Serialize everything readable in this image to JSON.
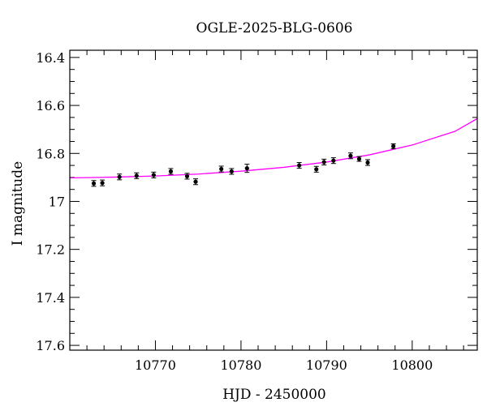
{
  "chart_data": {
    "type": "scatter",
    "title": "OGLE-2025-BLG-0606",
    "xlabel": "HJD - 2450000",
    "ylabel": "I magnitude",
    "xlim": [
      10760,
      10807.6
    ],
    "ylim": [
      17.62,
      16.37
    ],
    "y_inverted": true,
    "x_major_ticks": [
      10770,
      10780,
      10790,
      10800
    ],
    "x_tick_labels": [
      "10770",
      "10780",
      "10790",
      "10800"
    ],
    "y_major_ticks": [
      16.4,
      16.6,
      16.8,
      17.0,
      17.2,
      17.4,
      17.6
    ],
    "y_tick_labels": [
      "16.4",
      "16.6",
      "16.8",
      "17",
      "17.2",
      "17.4",
      "17.6"
    ],
    "grid": false,
    "colors": {
      "model": "#ff00ff",
      "points": "#000000"
    },
    "series": [
      {
        "type": "scatter",
        "x": [
          10762.8,
          10763.8,
          10765.8,
          10767.8,
          10769.8,
          10771.8,
          10773.7,
          10774.7,
          10777.7,
          10778.9,
          10780.7,
          10786.8,
          10788.8,
          10789.7,
          10790.8,
          10792.8,
          10793.8,
          10794.8,
          10797.8
        ],
        "y": [
          16.925,
          16.923,
          16.898,
          16.893,
          16.89,
          16.875,
          16.895,
          16.918,
          16.865,
          16.875,
          16.862,
          16.85,
          16.866,
          16.836,
          16.83,
          16.81,
          16.823,
          16.838,
          16.77
        ],
        "yerr": [
          0.012,
          0.012,
          0.012,
          0.012,
          0.012,
          0.012,
          0.012,
          0.012,
          0.012,
          0.012,
          0.017,
          0.012,
          0.012,
          0.012,
          0.012,
          0.012,
          0.01,
          0.012,
          0.01
        ]
      },
      {
        "type": "line",
        "x": [
          10760,
          10765,
          10770,
          10775,
          10780,
          10785,
          10790,
          10795,
          10800,
          10805,
          10807.6
        ],
        "y": [
          16.902,
          16.899,
          16.894,
          16.886,
          16.874,
          16.858,
          16.836,
          16.806,
          16.765,
          16.708,
          16.655
        ]
      }
    ]
  }
}
